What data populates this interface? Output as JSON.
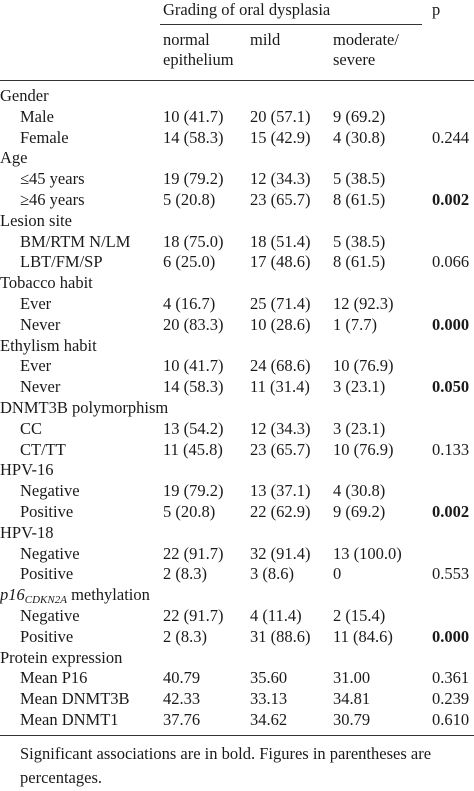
{
  "header": {
    "group_title": "Grading of oral dysplasia",
    "p_label": "p",
    "col1": [
      "normal",
      "epithelium"
    ],
    "col2": [
      "mild"
    ],
    "col3": [
      "moderate/",
      "severe"
    ]
  },
  "rows": [
    {
      "kind": "cat",
      "label": "Gender"
    },
    {
      "kind": "sub",
      "label": "Male",
      "v1": "10 (41.7)",
      "v2": "20 (57.1)",
      "v3": "9 (69.2)",
      "p": "",
      "bold": false
    },
    {
      "kind": "sub",
      "label": "Female",
      "v1": "14 (58.3)",
      "v2": "15 (42.9)",
      "v3": "4 (30.8)",
      "p": "0.244",
      "bold": false
    },
    {
      "kind": "cat",
      "label": "Age"
    },
    {
      "kind": "sub",
      "label": "≤45 years",
      "v1": "19 (79.2)",
      "v2": "12 (34.3)",
      "v3": "5 (38.5)",
      "p": "",
      "bold": false
    },
    {
      "kind": "sub",
      "label": "≥46 years",
      "v1": "5 (20.8)",
      "v2": "23 (65.7)",
      "v3": "8 (61.5)",
      "p": "0.002",
      "bold": true
    },
    {
      "kind": "cat",
      "label": "Lesion site"
    },
    {
      "kind": "sub",
      "label": "BM/RTM N/LM",
      "v1": "18 (75.0)",
      "v2": "18 (51.4)",
      "v3": "5 (38.5)",
      "p": "",
      "bold": false
    },
    {
      "kind": "sub",
      "label": "LBT/FM/SP",
      "v1": "6 (25.0)",
      "v2": "17 (48.6)",
      "v3": "8 (61.5)",
      "p": "0.066",
      "bold": false
    },
    {
      "kind": "cat",
      "label": "Tobacco habit"
    },
    {
      "kind": "sub",
      "label": "Ever",
      "v1": "4 (16.7)",
      "v2": "25 (71.4)",
      "v3": "12 (92.3)",
      "p": "",
      "bold": false
    },
    {
      "kind": "sub",
      "label": "Never",
      "v1": "20 (83.3)",
      "v2": "10 (28.6)",
      "v3": "1 (7.7)",
      "p": "0.000",
      "bold": true
    },
    {
      "kind": "cat",
      "label": "Ethylism habit"
    },
    {
      "kind": "sub",
      "label": "Ever",
      "v1": "10 (41.7)",
      "v2": "24 (68.6)",
      "v3": "10 (76.9)",
      "p": "",
      "bold": false
    },
    {
      "kind": "sub",
      "label": "Never",
      "v1": "14 (58.3)",
      "v2": "11 (31.4)",
      "v3": "3 (23.1)",
      "p": "0.050",
      "bold": true
    },
    {
      "kind": "cat",
      "label": "DNMT3B polymorphism"
    },
    {
      "kind": "sub",
      "label": "CC",
      "v1": "13 (54.2)",
      "v2": "12 (34.3)",
      "v3": "3 (23.1)",
      "p": "",
      "bold": false
    },
    {
      "kind": "sub",
      "label": "CT/TT",
      "v1": "11 (45.8)",
      "v2": "23 (65.7)",
      "v3": "10 (76.9)",
      "p": "0.133",
      "bold": false
    },
    {
      "kind": "cat",
      "label": "HPV-16"
    },
    {
      "kind": "sub",
      "label": "Negative",
      "v1": "19 (79.2)",
      "v2": "13 (37.1)",
      "v3": "4 (30.8)",
      "p": "",
      "bold": false
    },
    {
      "kind": "sub",
      "label": "Positive",
      "v1": "5 (20.8)",
      "v2": "22 (62.9)",
      "v3": "9 (69.2)",
      "p": "0.002",
      "bold": true
    },
    {
      "kind": "cat",
      "label": "HPV-18"
    },
    {
      "kind": "sub",
      "label": "Negative",
      "v1": "22 (91.7)",
      "v2": "32 (91.4)",
      "v3": "13 (100.0)",
      "p": "",
      "bold": false
    },
    {
      "kind": "sub",
      "label": "Positive",
      "v1": "2 (8.3)",
      "v2": "3 (8.6)",
      "v3": "0",
      "p": "0.553",
      "bold": false
    },
    {
      "kind": "cat-special",
      "label_main": "p16",
      "label_sub": "CDKN2A",
      "label_rest": " methylation"
    },
    {
      "kind": "sub",
      "label": "Negative",
      "v1": "22 (91.7)",
      "v2": "4 (11.4)",
      "v3": "2 (15.4)",
      "p": "",
      "bold": false
    },
    {
      "kind": "sub",
      "label": "Positive",
      "v1": "2 (8.3)",
      "v2": "31 (88.6)",
      "v3": "11 (84.6)",
      "p": "0.000",
      "bold": true
    },
    {
      "kind": "cat",
      "label": "Protein expression"
    },
    {
      "kind": "sub",
      "label": "Mean P16",
      "v1": "40.79",
      "v2": "35.60",
      "v3": "31.00",
      "p": "0.361",
      "bold": false
    },
    {
      "kind": "sub",
      "label": "Mean DNMT3B",
      "v1": "42.33",
      "v2": "33.13",
      "v3": "34.81",
      "p": "0.239",
      "bold": false
    },
    {
      "kind": "sub",
      "label": "Mean DNMT1",
      "v1": "37.76",
      "v2": "34.62",
      "v3": "30.79",
      "p": "0.610",
      "bold": false
    }
  ],
  "footnote": "Significant associations are in bold. Figures in parentheses are percentages."
}
